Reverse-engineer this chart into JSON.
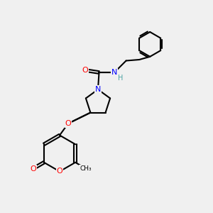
{
  "bg_color": "#f0f0f0",
  "bond_color": "#000000",
  "oxygen_color": "#ff0000",
  "nitrogen_color": "#0000ff",
  "hydrogen_color": "#4ba3a3",
  "bond_width": 1.5,
  "figsize": [
    3.0,
    3.0
  ],
  "dpi": 100,
  "xlim": [
    0,
    10
  ],
  "ylim": [
    0,
    10
  ]
}
